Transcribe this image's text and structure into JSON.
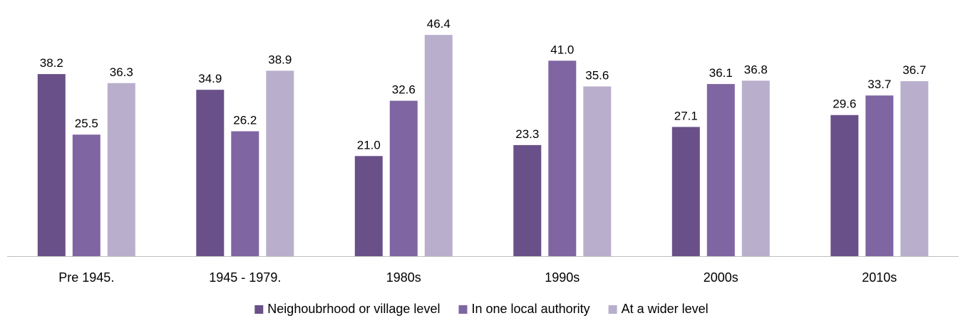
{
  "chart_data": {
    "type": "bar",
    "title": "",
    "xlabel": "",
    "ylabel": "",
    "ylim": [
      0,
      50
    ],
    "grid": false,
    "legend_position": "bottom",
    "categories": [
      "Pre 1945.",
      "1945 - 1979.",
      "1980s",
      "1990s",
      "2000s",
      "2010s"
    ],
    "series": [
      {
        "name": "Neighoubrhood or village level",
        "color": "#6a5089",
        "values": [
          38.2,
          34.9,
          21.0,
          23.3,
          27.1,
          29.6
        ]
      },
      {
        "name": "In one local authority",
        "color": "#8065a3",
        "values": [
          25.5,
          26.2,
          32.6,
          41.0,
          36.1,
          33.7
        ]
      },
      {
        "name": "At a wider level",
        "color": "#b9afcc",
        "values": [
          36.3,
          38.9,
          46.4,
          35.6,
          36.8,
          36.7
        ]
      }
    ]
  }
}
